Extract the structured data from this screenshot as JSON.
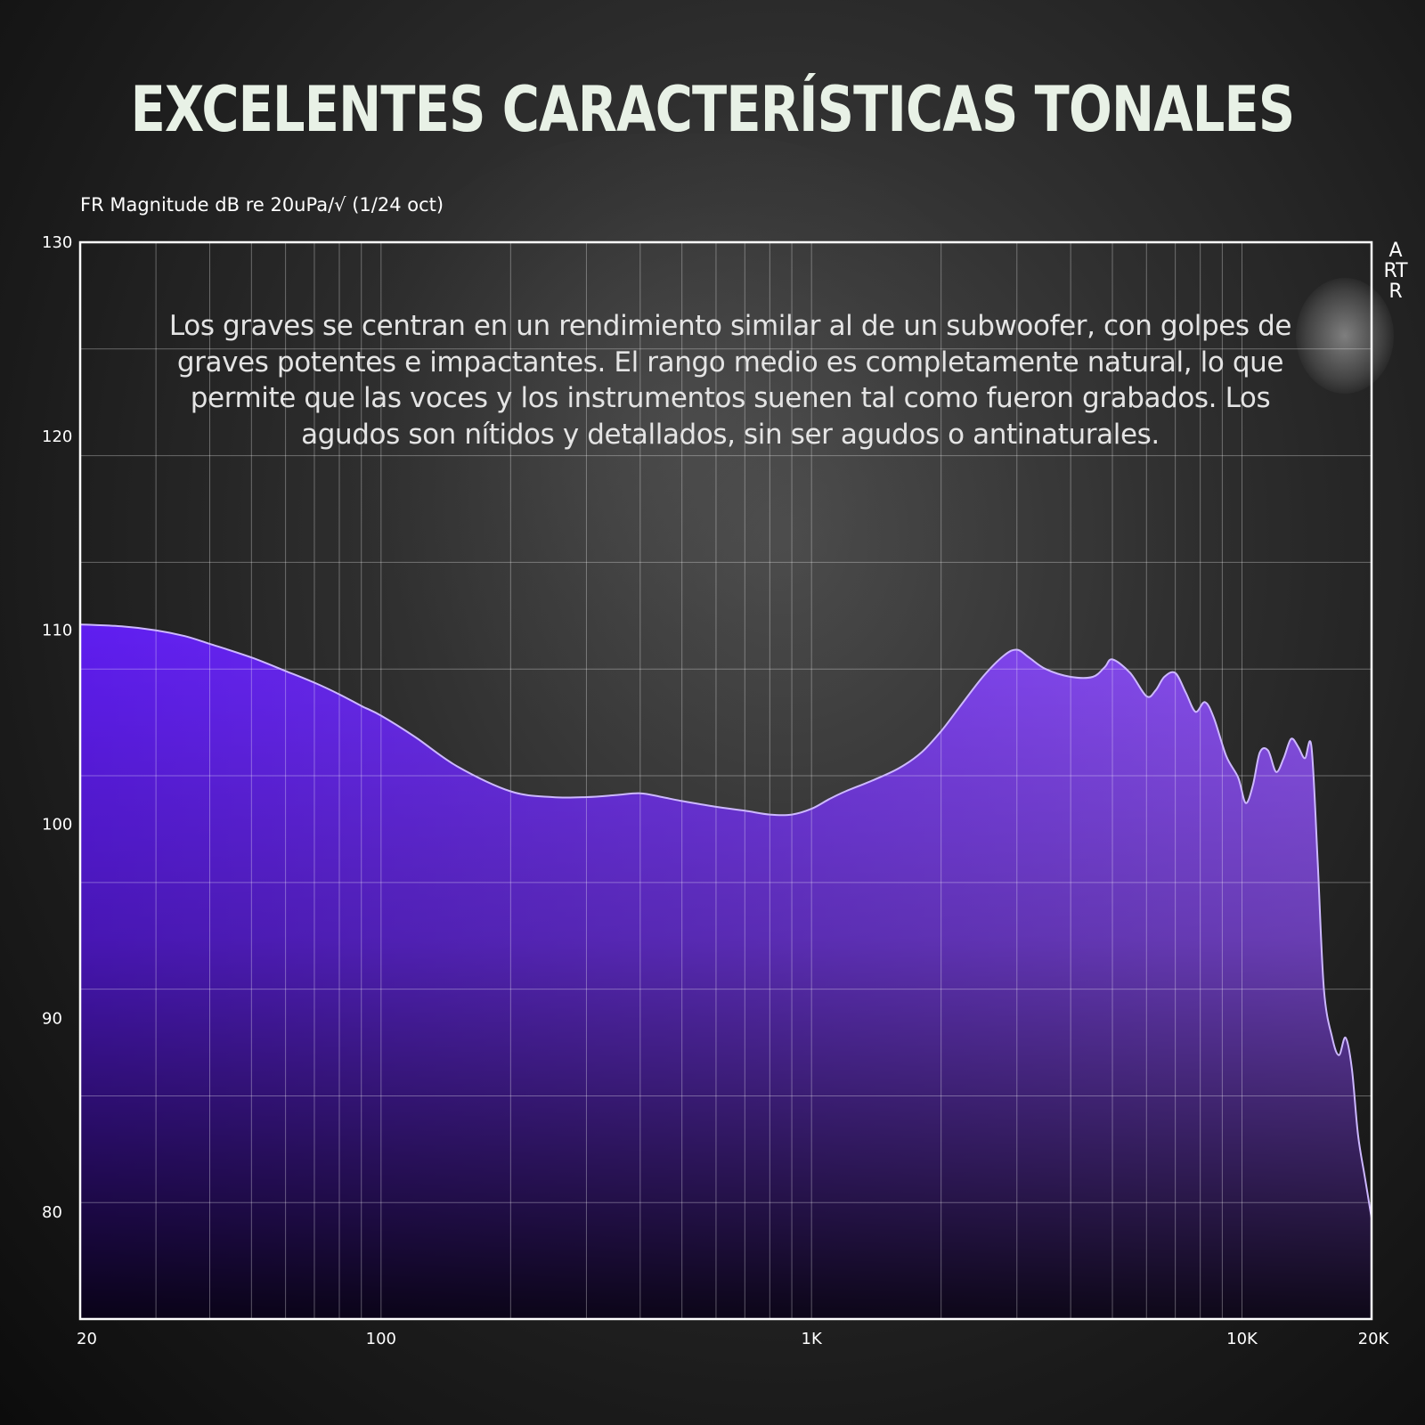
{
  "title": "EXCELENTES CARACTERÍSTICAS TONALES",
  "description": "Los graves se centran en un rendimiento similar al de un subwoofer, con golpes de graves potentes e impactantes. El rango medio es completamente natural, lo que permite que las voces y los instrumentos suenen tal como fueron grabados. Los agudos son nítidos y detallados, sin ser agudos o antinaturales.",
  "logo_text": "ARTR",
  "chart_data": {
    "type": "area",
    "ylabel": "FR Magnitude dB re 20uPa/√ (1/24 oct)",
    "xlabel": "",
    "x_scale": "log",
    "xlim": [
      20,
      20000
    ],
    "ylim": [
      74.5,
      130
    ],
    "grid": true,
    "x_ticks": [
      {
        "value": 20,
        "label": "20"
      },
      {
        "value": 100,
        "label": "100"
      },
      {
        "value": 1000,
        "label": "1K"
      },
      {
        "value": 10000,
        "label": "10K"
      },
      {
        "value": 20000,
        "label": "20K"
      }
    ],
    "y_ticks": [
      {
        "value": 130,
        "label": "130"
      },
      {
        "value": 120,
        "label": "120"
      },
      {
        "value": 110,
        "label": "110"
      },
      {
        "value": 100,
        "label": "100"
      },
      {
        "value": 90,
        "label": "90"
      },
      {
        "value": 80,
        "label": "80"
      }
    ],
    "y_gridlines": [
      124.5,
      119,
      113.5,
      108,
      102.5,
      97,
      91.5,
      86,
      80.5
    ],
    "x_gridlines": [
      30,
      40,
      50,
      60,
      70,
      80,
      90,
      200,
      300,
      400,
      500,
      600,
      700,
      800,
      900,
      2000,
      3000,
      4000,
      5000,
      6000,
      7000,
      8000,
      9000
    ],
    "fill_gradient": [
      "#5f1df0",
      "#8e55ee",
      "#0b0710",
      "#3a3446"
    ],
    "line_color": "#cdb8ff",
    "series": [
      {
        "x": [
          20,
          25,
          30,
          35,
          40,
          50,
          60,
          70,
          80,
          90,
          100,
          120,
          150,
          200,
          250,
          300,
          350,
          400,
          450,
          500,
          600,
          700,
          800,
          900,
          1000,
          1100,
          1200,
          1400,
          1600,
          1800,
          2000,
          2200,
          2500,
          2800,
          3000,
          3200,
          3500,
          4000,
          4500,
          4800,
          5000,
          5500,
          6000,
          6300,
          6600,
          7000,
          7400,
          7800,
          8200,
          8600,
          9200,
          9800,
          10200,
          10600,
          11000,
          11500,
          12000,
          12500,
          13000,
          13500,
          14000,
          14500,
          15000,
          15500,
          16200,
          16800,
          17400,
          18000,
          18600,
          19300,
          20000
        ],
        "y": [
          110.3,
          110.2,
          110.0,
          109.7,
          109.3,
          108.6,
          107.9,
          107.3,
          106.7,
          106.1,
          105.6,
          104.5,
          103.0,
          101.7,
          101.4,
          101.4,
          101.5,
          101.6,
          101.4,
          101.2,
          100.9,
          100.7,
          100.5,
          100.5,
          100.8,
          101.3,
          101.7,
          102.3,
          102.9,
          103.7,
          104.8,
          106.0,
          107.6,
          108.7,
          109.0,
          108.6,
          108.0,
          107.6,
          107.6,
          108.1,
          108.5,
          107.8,
          106.6,
          106.9,
          107.6,
          107.8,
          106.8,
          105.8,
          106.3,
          105.5,
          103.5,
          102.4,
          101.1,
          102.0,
          103.7,
          103.8,
          102.7,
          103.4,
          104.4,
          104.0,
          103.4,
          104.0,
          98.0,
          91.5,
          89.0,
          88.1,
          89.0,
          87.4,
          84.0,
          81.8,
          79.7
        ]
      }
    ]
  }
}
